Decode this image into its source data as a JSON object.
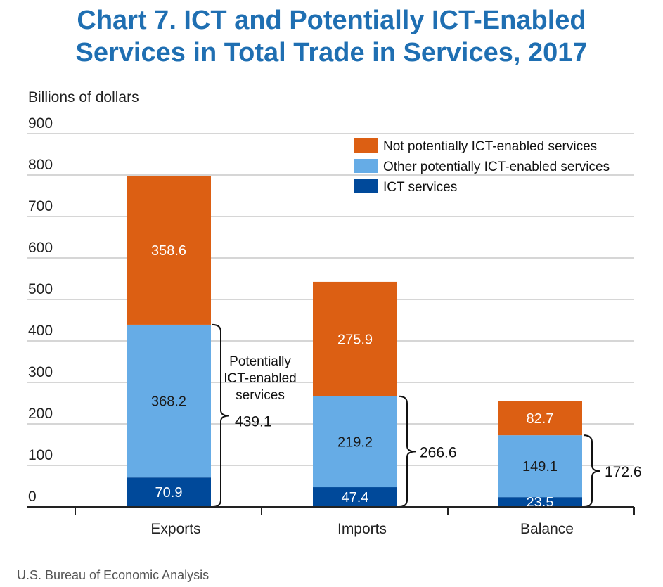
{
  "title_lines": [
    "Chart 7. ICT and Potentially ICT-Enabled",
    "Services in Total Trade in Services, 2017"
  ],
  "source": "U.S. Bureau of Economic Analysis",
  "chart_data": {
    "type": "bar",
    "stacked": true,
    "title": "Chart 7. ICT and Potentially ICT-Enabled Services in Total Trade in Services, 2017",
    "ylabel": "Billions of dollars",
    "xlabel": "",
    "ylim": [
      0,
      900
    ],
    "yticks": [
      0,
      100,
      200,
      300,
      400,
      500,
      600,
      700,
      800,
      900
    ],
    "grid": true,
    "legend_position": "top-right",
    "categories": [
      "Exports",
      "Imports",
      "Balance"
    ],
    "series": [
      {
        "name": "ICT services",
        "color": "#00499a",
        "values": [
          70.9,
          47.4,
          23.5
        ],
        "labels": [
          "70.9",
          "47.4",
          "23.5"
        ]
      },
      {
        "name": "Other potentially ICT-enabled services",
        "color": "#66ace6",
        "values": [
          368.2,
          219.2,
          149.1
        ],
        "labels": [
          "368.2",
          "219.2",
          "149.1"
        ]
      },
      {
        "name": "Not potentially ICT-enabled services",
        "color": "#dc5f13",
        "values": [
          358.6,
          275.9,
          82.7
        ],
        "labels": [
          "358.6",
          "275.9",
          "82.7"
        ]
      }
    ],
    "legend_order": [
      2,
      1,
      0
    ],
    "bracket_totals": [
      "439.1",
      "266.6",
      "172.6"
    ],
    "bracket_note_lines": [
      "Potentially",
      "ICT-enabled",
      "services"
    ]
  }
}
